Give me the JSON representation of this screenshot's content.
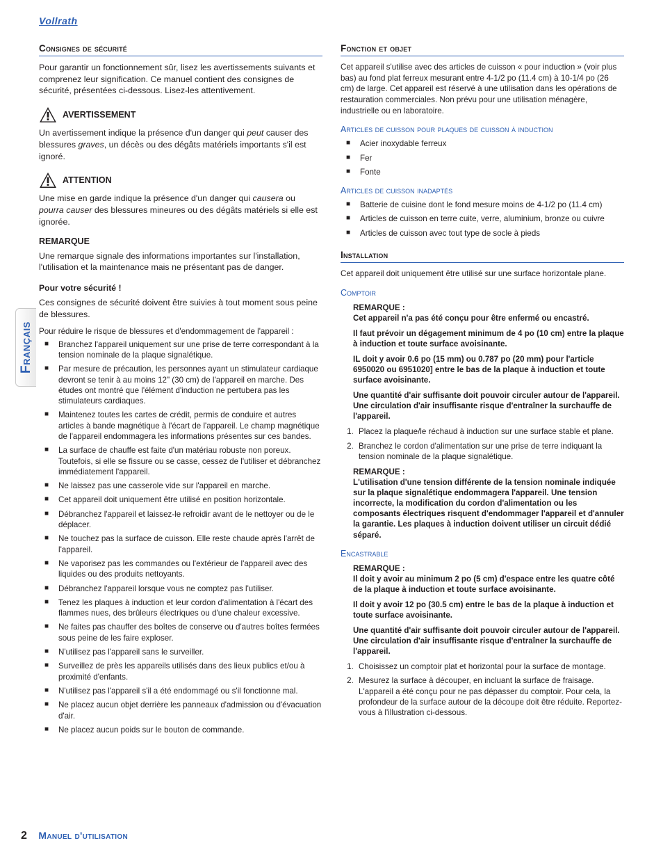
{
  "logo_text": "Vollrath",
  "side_tab": "Français",
  "footer": {
    "page_number": "2",
    "title": "Manuel d'utilisation"
  },
  "left": {
    "h_consignes": "Consignes de sécurité",
    "p_intro": "Pour garantir un fonctionnement sûr, lisez les avertissements suivants et comprenez leur signification. Ce manuel contient des consignes de sécurité, présentées ci-dessous. Lisez-les attentivement.",
    "warn_label": "AVERTISSEMENT",
    "warn_text_1": "Un avertissement indique la présence d'un danger qui ",
    "warn_text_peut": "peut",
    "warn_text_2": " causer des blessures ",
    "warn_text_graves": "graves",
    "warn_text_3": ", un décès ou des dégâts matériels importants s'il est ignoré.",
    "att_label": "ATTENTION",
    "att_text_1": "Une mise en garde indique la présence d'un danger qui ",
    "att_text_causera": "causera",
    "att_text_2": " ou ",
    "att_text_pourra": "pourra causer",
    "att_text_3": " des blessures mineures ou des dégâts matériels si elle est ignorée.",
    "remarque_label": "REMARQUE",
    "remarque_text": "Une remarque signale des informations importantes sur l'installation, l'utilisation et la maintenance mais ne présentant pas de danger.",
    "safety_title": "Pour votre sécurité !",
    "safety_intro": "Ces consignes de sécurité doivent être suivies à tout moment sous peine de blessures.",
    "reduce_line": "Pour réduire le risque de blessures et d'endommagement de l'appareil :",
    "bullets": [
      "Branchez l'appareil uniquement sur une prise de terre correspondant à la tension nominale de la plaque signalétique.",
      "Par mesure de précaution, les personnes ayant un stimulateur cardiaque devront se tenir à au moins 12\" (30 cm) de l'appareil en marche. Des études ont montré que l'élément d'induction ne pertubera pas les stimulateurs cardiaques.",
      "Maintenez toutes les cartes de crédit, permis de conduire et autres articles à bande magnétique à l'écart de l'appareil. Le champ magnétique de l'appareil endommagera les informations présentes sur ces bandes.",
      "La surface de chauffe est faite d'un matériau robuste non poreux. Toutefois, si elle se fissure ou se casse, cessez de l'utiliser et débranchez immédiatement l'appareil.",
      "Ne laissez pas une casserole vide sur l'appareil en marche.",
      "Cet appareil doit uniquement être utilisé en position horizontale.",
      "Débranchez l'appareil et laissez-le refroidir avant de le nettoyer ou de le déplacer.",
      "Ne touchez pas la surface de cuisson. Elle reste chaude après l'arrêt de l'appareil.",
      "Ne vaporisez pas les commandes ou l'extérieur de l'appareil avec des liquides ou des produits nettoyants.",
      "Débranchez l'appareil lorsque vous ne comptez pas l'utiliser.",
      "Tenez les plaques à induction et leur cordon d'alimentation à l'écart des flammes nues, des brûleurs électriques ou d'une chaleur excessive.",
      "Ne faites pas chauffer des boîtes de conserve ou d'autres boîtes fermées sous peine de les faire exploser.",
      "N'utilisez pas l'appareil sans le surveiller.",
      "Surveillez de près les appareils utilisés dans des lieux publics et/ou à proximité d'enfants.",
      "N'utilisez pas l'appareil s'il a été endommagé ou s'il fonctionne mal.",
      "Ne placez aucun objet derrière les panneaux d'admission ou d'évacuation d'air.",
      "Ne placez aucun poids sur le bouton de commande."
    ]
  },
  "right": {
    "h_fonction": "Fonction et objet",
    "p_fonction": "Cet appareil s'utilise avec des articles de cuisson « pour induction » (voir plus bas) au fond plat ferreux mesurant entre 4-1/2 po (11.4 cm) à 10-1/4 po (26 cm) de large. Cet appareil est réservé à une utilisation dans les opérations de restauration commerciales. Non prévu pour une utilisation ménagère, industrielle ou en laboratoire.",
    "h_cookware_ok": "Articles de cuisson pour plaques de cuisson à induction",
    "cookware_ok": [
      "Acier inoxydable ferreux",
      "Fer",
      "Fonte"
    ],
    "h_cookware_bad": "Articles de cuisson inadaptés",
    "cookware_bad": [
      "Batterie de cuisine dont le fond mesure moins de 4-1/2 po (11.4 cm)",
      "Articles de cuisson en terre cuite, verre, aluminium, bronze ou cuivre",
      "Articles de cuisson avec tout type de socle à pieds"
    ],
    "h_installation": "Installation",
    "p_installation": "Cet appareil doit uniquement être utilisé sur une surface horizontale plane.",
    "h_comptoir": "Comptoir",
    "comptoir_notes": [
      {
        "title": "REMARQUE :",
        "text": "Cet appareil n'a pas été conçu pour être enfermé ou encastré."
      },
      {
        "title": "",
        "text": "Il faut prévoir un dégagement minimum de 4 po (10 cm) entre la plaque à induction et toute surface avoisinante."
      },
      {
        "title": "",
        "text": "IL doit y avoir 0.6 po (15 mm) ou 0.787 po (20 mm) pour l'article 6950020 ou 6951020] entre le bas de la plaque à induction et toute surface avoisinante."
      },
      {
        "title": "",
        "text": "Une quantité d'air suffisante doit pouvoir circuler autour de l'appareil. Une circulation d'air insuffisante risque d'entraîner la surchauffe de l'appareil."
      }
    ],
    "comptoir_steps": [
      "Placez la plaque/le réchaud à induction sur une surface stable et plane.",
      "Branchez le cordon d'alimentation sur une prise de terre indiquant la tension nominale de la plaque signalétique."
    ],
    "comptoir_note2_title": "REMARQUE :",
    "comptoir_note2_text": "L'utilisation d'une tension différente de la tension nominale indiquée sur la plaque signalétique endommagera l'appareil. Une tension incorrecte, la modification du cordon d'alimentation ou les composants électriques risquent d'endommager l'appareil et d'annuler la garantie. Les plaques à induction doivent utiliser un circuit dédié séparé.",
    "h_encastrable": "Encastrable",
    "enc_notes": [
      {
        "title": "REMARQUE :",
        "text": "Il doit y avoir au minimum 2 po (5 cm) d'espace entre les quatre côté de la plaque à induction et toute surface avoisinante."
      },
      {
        "title": "",
        "text": "Il doit y avoir 12 po (30.5 cm) entre le bas de la plaque à induction et toute surface avoisinante."
      },
      {
        "title": "",
        "text": "Une quantité d'air suffisante doit pouvoir circuler autour de l'appareil. Une circulation d'air insuffisante risque d'entraîner la surchauffe de l'appareil."
      }
    ],
    "enc_steps": [
      "Choisissez un comptoir plat et horizontal pour la surface de montage.",
      "Mesurez la surface à découper, en incluant la surface de fraisage. L'appareil a été conçu pour ne pas dépasser du comptoir. Pour cela, la profondeur de la surface autour de la découpe doit être réduite. Reportez-vous à l'illustration ci-dessous."
    ]
  }
}
